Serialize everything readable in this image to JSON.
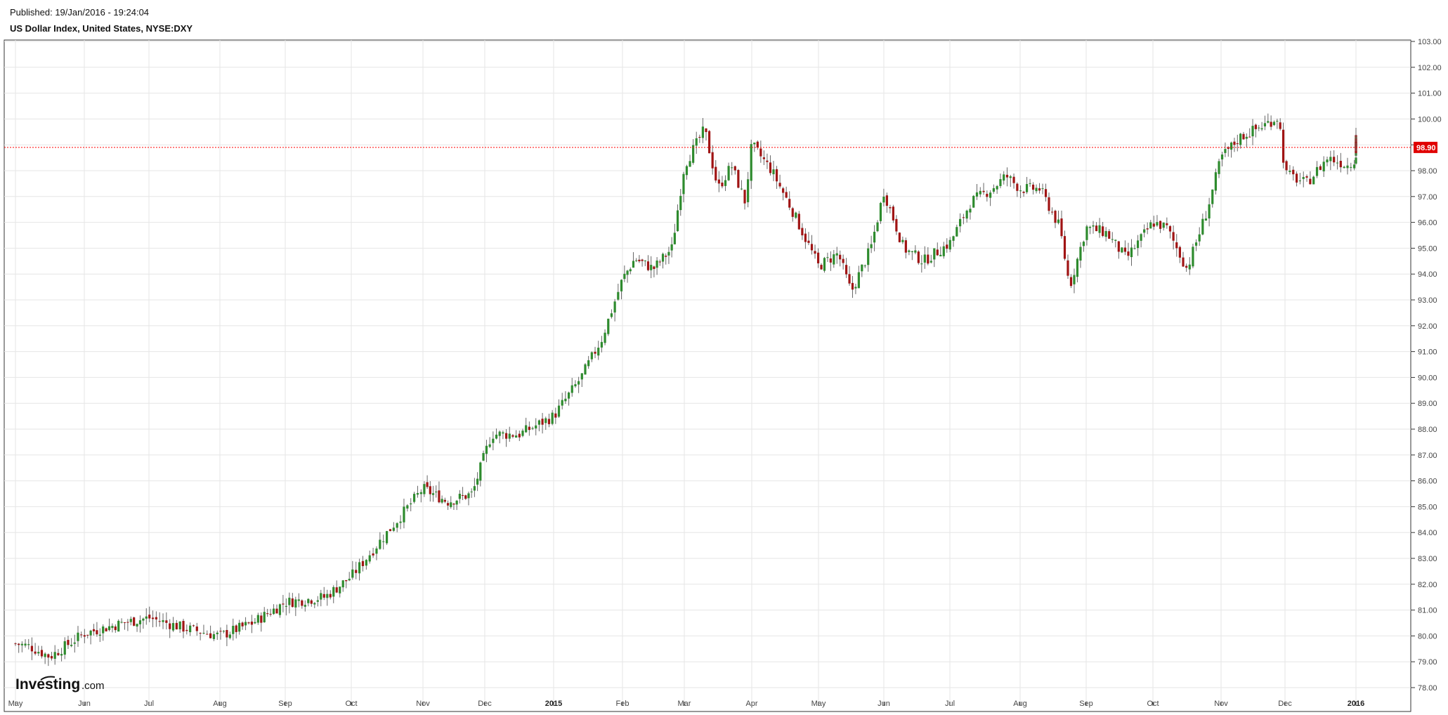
{
  "header": {
    "published": "Published: 19/Jan/2016 - 19:24:04",
    "title": "US Dollar Index, United States, NYSE:DXY"
  },
  "logo": {
    "main": "Investing",
    "sub": ".com"
  },
  "colors": {
    "up": "#2e8b2e",
    "down": "#a01414",
    "grid": "#e6e6e6",
    "last_line": "#ff0000"
  },
  "chart_data": {
    "type": "candlestick",
    "title": "US Dollar Index, United States, NYSE:DXY",
    "ylim": [
      77.5,
      103.0
    ],
    "y_ticks": [
      "78.00",
      "79.00",
      "80.00",
      "81.00",
      "82.00",
      "83.00",
      "84.00",
      "85.00",
      "86.00",
      "87.00",
      "88.00",
      "89.00",
      "90.00",
      "91.00",
      "92.00",
      "93.00",
      "94.00",
      "95.00",
      "96.00",
      "97.00",
      "98.00",
      "99.00",
      "100.00",
      "101.00",
      "102.00",
      "103.00"
    ],
    "x_ticks": [
      {
        "label": "May",
        "bold": false
      },
      {
        "label": "Jun",
        "bold": false
      },
      {
        "label": "Jul",
        "bold": false
      },
      {
        "label": "Aug",
        "bold": false
      },
      {
        "label": "Sep",
        "bold": false
      },
      {
        "label": "Oct",
        "bold": false
      },
      {
        "label": "Nov",
        "bold": false
      },
      {
        "label": "Dec",
        "bold": false
      },
      {
        "label": "2015",
        "bold": true
      },
      {
        "label": "Feb",
        "bold": false
      },
      {
        "label": "Mar",
        "bold": false
      },
      {
        "label": "Apr",
        "bold": false
      },
      {
        "label": "May",
        "bold": false
      },
      {
        "label": "Jun",
        "bold": false
      },
      {
        "label": "Jul",
        "bold": false
      },
      {
        "label": "Aug",
        "bold": false
      },
      {
        "label": "Sep",
        "bold": false
      },
      {
        "label": "Oct",
        "bold": false
      },
      {
        "label": "Nov",
        "bold": false
      },
      {
        "label": "Dec",
        "bold": false
      },
      {
        "label": "2016",
        "bold": true
      }
    ],
    "last_value": "98.90",
    "grid": true,
    "close_path": [
      [
        0,
        79.7
      ],
      [
        0.2,
        79.6
      ],
      [
        0.5,
        79.2
      ],
      [
        1.0,
        80.1
      ],
      [
        1.6,
        80.5
      ],
      [
        2.0,
        80.7
      ],
      [
        2.5,
        80.3
      ],
      [
        3.0,
        80.0
      ],
      [
        3.5,
        80.5
      ],
      [
        4.0,
        81.3
      ],
      [
        4.6,
        81.5
      ],
      [
        5.0,
        82.3
      ],
      [
        5.5,
        84.0
      ],
      [
        6.0,
        85.7
      ],
      [
        6.4,
        85.2
      ],
      [
        6.8,
        85.5
      ],
      [
        7.1,
        87.8
      ],
      [
        7.5,
        87.8
      ],
      [
        8.0,
        88.5
      ],
      [
        8.4,
        90.0
      ],
      [
        8.7,
        91.5
      ],
      [
        9.0,
        93.8
      ],
      [
        9.2,
        94.6
      ],
      [
        9.5,
        94.2
      ],
      [
        9.8,
        95.0
      ],
      [
        10.0,
        98.2
      ],
      [
        10.3,
        99.6
      ],
      [
        10.5,
        97.3
      ],
      [
        10.7,
        98.2
      ],
      [
        10.9,
        96.8
      ],
      [
        11.0,
        99.0
      ],
      [
        11.3,
        98.0
      ],
      [
        11.6,
        96.5
      ],
      [
        12.0,
        94.3
      ],
      [
        12.3,
        94.8
      ],
      [
        12.5,
        93.3
      ],
      [
        12.8,
        95.0
      ],
      [
        13.0,
        97.2
      ],
      [
        13.3,
        95.0
      ],
      [
        13.6,
        94.5
      ],
      [
        14.0,
        95.2
      ],
      [
        14.3,
        96.8
      ],
      [
        14.6,
        97.3
      ],
      [
        14.8,
        97.8
      ],
      [
        15.0,
        97.3
      ],
      [
        15.3,
        97.3
      ],
      [
        15.6,
        95.8
      ],
      [
        15.75,
        93.5
      ],
      [
        16.0,
        95.8
      ],
      [
        16.3,
        95.6
      ],
      [
        16.6,
        94.6
      ],
      [
        17.0,
        96.0
      ],
      [
        17.2,
        95.8
      ],
      [
        17.5,
        94.2
      ],
      [
        17.8,
        96.5
      ],
      [
        18.0,
        98.5
      ],
      [
        18.3,
        99.3
      ],
      [
        18.7,
        99.8
      ],
      [
        18.9,
        100.1
      ],
      [
        19.0,
        97.9
      ],
      [
        19.3,
        97.5
      ],
      [
        19.6,
        98.5
      ],
      [
        19.9,
        98.2
      ],
      [
        20.2,
        99.2
      ],
      [
        20.55,
        98.9
      ]
    ]
  }
}
